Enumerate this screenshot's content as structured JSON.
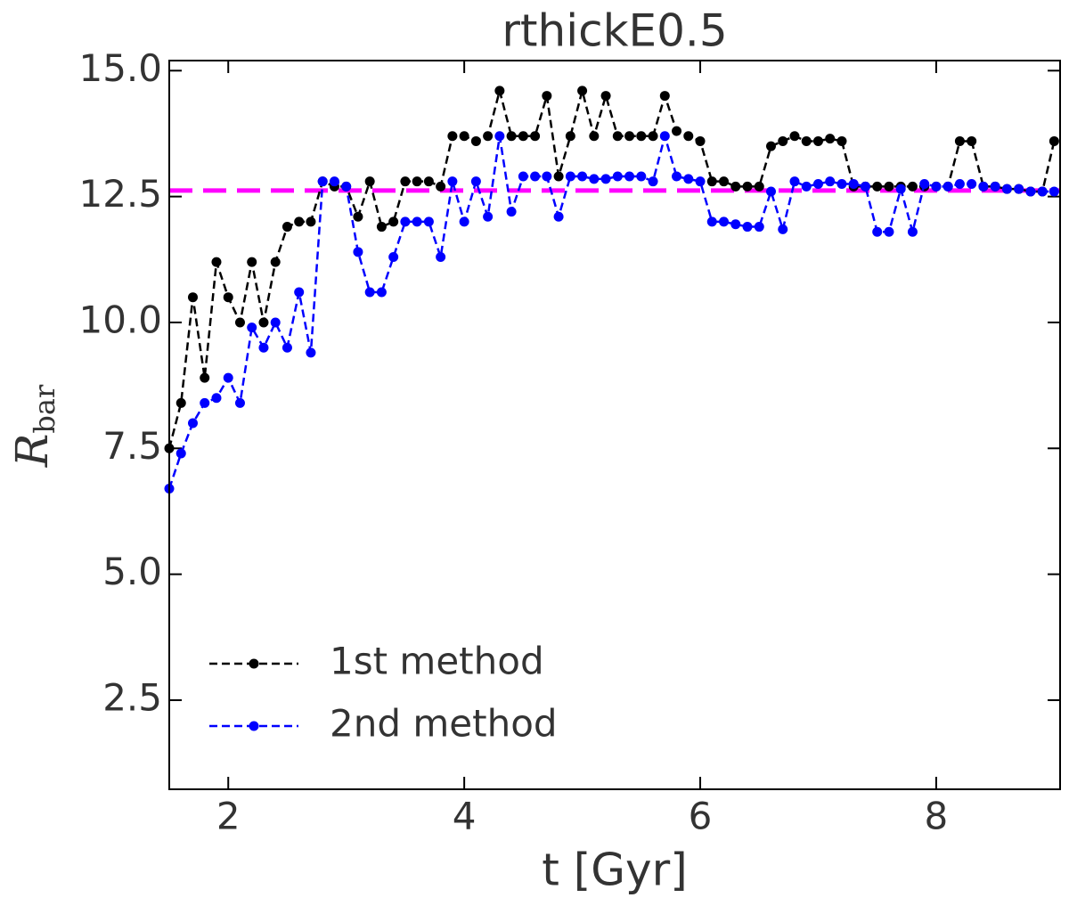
{
  "chart_data": {
    "type": "line",
    "title": "rthickE0.5",
    "xlabel": "t [Gyr]",
    "ylabel": {
      "main": "R",
      "sub": "bar"
    },
    "x": [
      1.5,
      1.6,
      1.7,
      1.8,
      1.9,
      2.0,
      2.1,
      2.2,
      2.3,
      2.4,
      2.5,
      2.6,
      2.7,
      2.8,
      2.9,
      3.0,
      3.1,
      3.2,
      3.3,
      3.4,
      3.5,
      3.6,
      3.7,
      3.8,
      3.9,
      4.0,
      4.1,
      4.2,
      4.3,
      4.4,
      4.5,
      4.6,
      4.7,
      4.8,
      4.9,
      5.0,
      5.1,
      5.2,
      5.3,
      5.4,
      5.5,
      5.6,
      5.7,
      5.8,
      5.9,
      6.0,
      6.1,
      6.2,
      6.3,
      6.4,
      6.5,
      6.6,
      6.7,
      6.8,
      6.9,
      7.0,
      7.1,
      7.2,
      7.3,
      7.4,
      7.5,
      7.6,
      7.7,
      7.8,
      7.9,
      8.0,
      8.1,
      8.2,
      8.3,
      8.4,
      8.5,
      8.6,
      8.7,
      8.8,
      8.9,
      9.0
    ],
    "series": [
      {
        "name": "1st method",
        "color": "#000000",
        "values": [
          7.5,
          8.4,
          10.5,
          8.9,
          11.2,
          10.5,
          10.0,
          11.2,
          10.0,
          11.2,
          11.9,
          12.0,
          12.0,
          12.8,
          12.7,
          12.7,
          12.1,
          12.8,
          11.9,
          12.0,
          12.8,
          12.8,
          12.8,
          12.7,
          13.7,
          13.7,
          13.6,
          13.7,
          14.6,
          13.7,
          13.7,
          13.7,
          14.5,
          12.9,
          13.7,
          14.6,
          13.7,
          14.5,
          13.7,
          13.7,
          13.7,
          13.7,
          14.5,
          13.8,
          13.7,
          13.6,
          12.8,
          12.8,
          12.7,
          12.7,
          12.7,
          13.5,
          13.6,
          13.7,
          13.6,
          13.6,
          13.65,
          13.6,
          12.7,
          12.7,
          12.7,
          12.7,
          12.7,
          12.7,
          12.7,
          12.7,
          12.7,
          13.6,
          13.6,
          12.7,
          12.7,
          12.65,
          12.65,
          12.6,
          12.6,
          13.6
        ]
      },
      {
        "name": "2nd method",
        "color": "#0000ff",
        "values": [
          6.7,
          7.4,
          8.0,
          8.4,
          8.5,
          8.9,
          8.4,
          9.9,
          9.5,
          10.0,
          9.5,
          10.6,
          9.4,
          12.8,
          12.8,
          12.7,
          11.4,
          10.6,
          10.6,
          11.3,
          12.0,
          12.0,
          12.0,
          11.3,
          12.8,
          12.0,
          12.8,
          12.1,
          13.7,
          12.2,
          12.9,
          12.9,
          12.9,
          12.1,
          12.9,
          12.9,
          12.85,
          12.85,
          12.9,
          12.9,
          12.9,
          12.8,
          13.7,
          12.9,
          12.85,
          12.8,
          12.0,
          12.0,
          11.95,
          11.9,
          11.9,
          12.6,
          11.85,
          12.8,
          12.7,
          12.75,
          12.8,
          12.75,
          12.75,
          12.7,
          11.8,
          11.8,
          12.65,
          11.8,
          12.75,
          12.7,
          12.7,
          12.75,
          12.75,
          12.7,
          12.7,
          12.65,
          12.65,
          12.6,
          12.6,
          12.6
        ]
      }
    ],
    "hline": {
      "value": 12.62,
      "color": "#ff00ff"
    },
    "xlim": [
      1.5,
      9.05
    ],
    "ylim": [
      0.73,
      15.2
    ],
    "xticks": [
      2,
      4,
      6,
      8
    ],
    "yticks": [
      {
        "value": 2.5,
        "label": "2.5"
      },
      {
        "value": 5,
        "label": "5.0"
      },
      {
        "value": 7.5,
        "label": "7.5"
      },
      {
        "value": 10,
        "label": "10.0"
      },
      {
        "value": 12.5,
        "label": "12.5"
      },
      {
        "value": 15,
        "label": "15.0"
      }
    ],
    "legend": "lower left"
  }
}
